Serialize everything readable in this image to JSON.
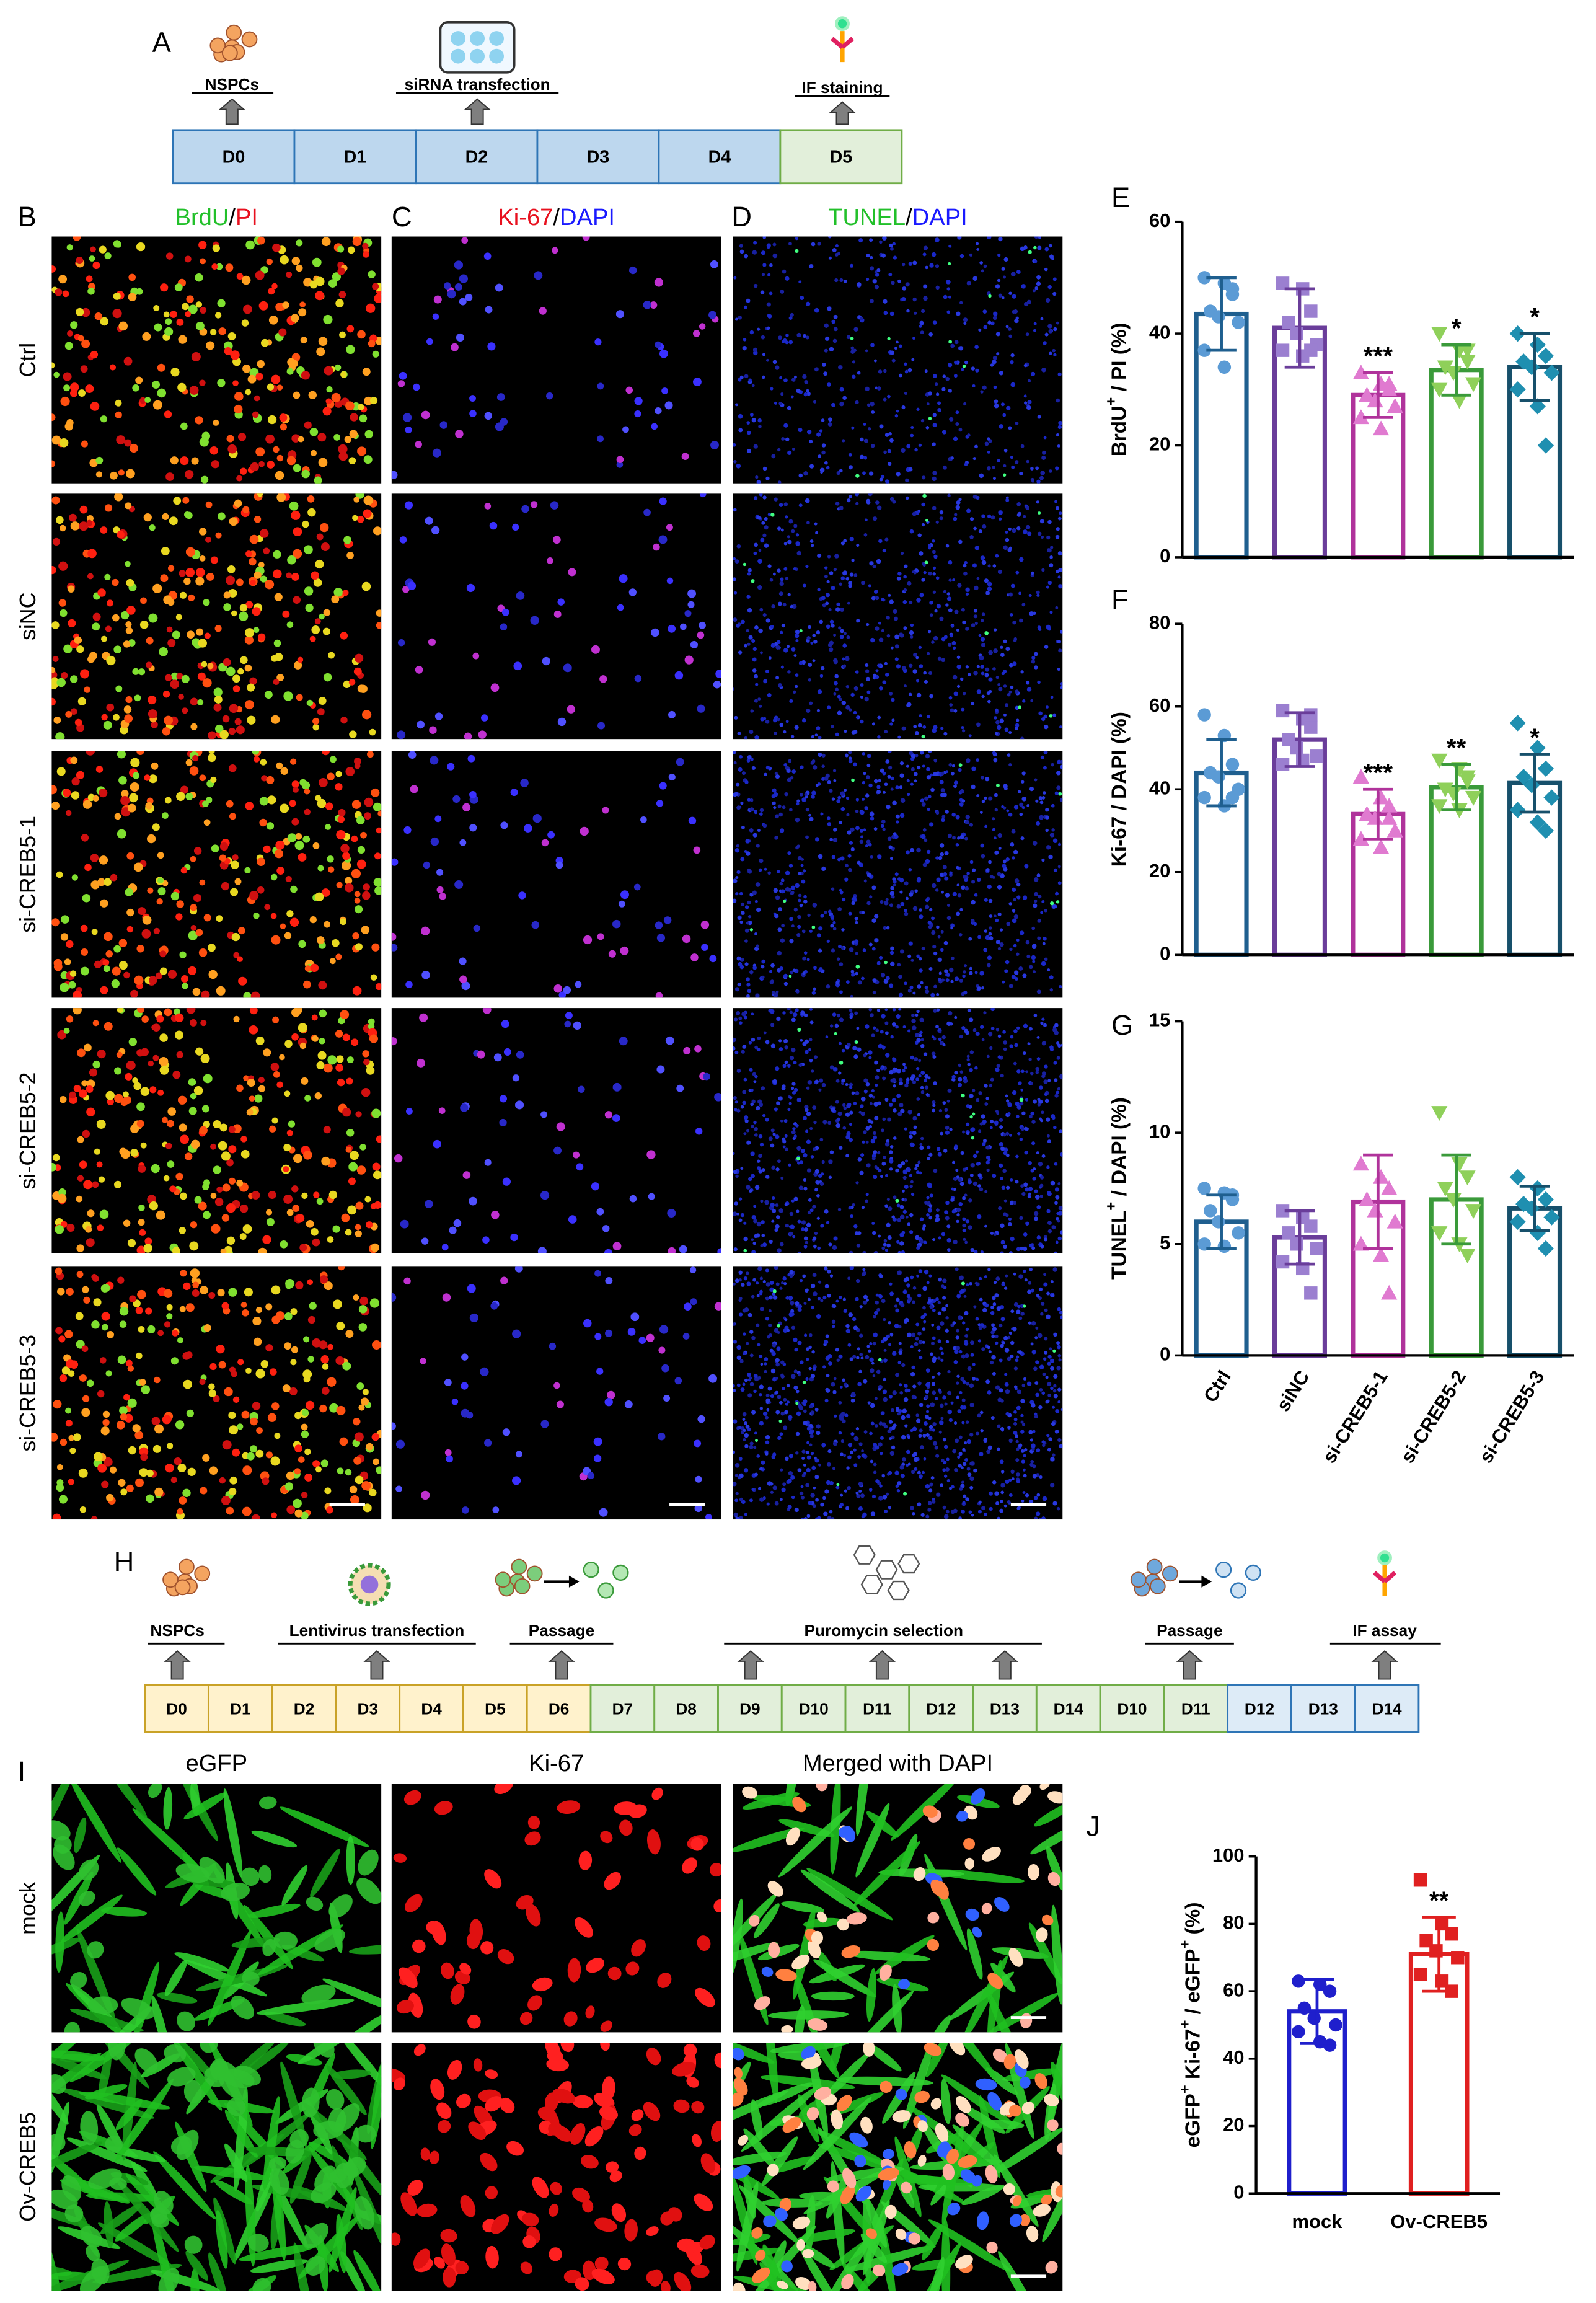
{
  "panel_letters": [
    "A",
    "B",
    "C",
    "D",
    "E",
    "F",
    "G",
    "H",
    "I",
    "J"
  ],
  "timeline_a": {
    "phases": [
      {
        "fill": "#bdd7ee",
        "stroke": "#2e75b6",
        "cells": [
          "D0",
          "D1",
          "D2",
          "D3",
          "D4"
        ]
      },
      {
        "fill": "#e2efda",
        "stroke": "#70ad47",
        "cells": [
          "D5"
        ]
      }
    ],
    "annotations": [
      "NSPCs",
      "siRNA transfection",
      "IF staining"
    ]
  },
  "image_grid_1": {
    "columns": [
      [
        {
          "text": "BrdU",
          "color": "#22c02a"
        },
        {
          "text": "/",
          "color": "#000000"
        },
        {
          "text": "PI",
          "color": "#e8101e"
        }
      ],
      [
        {
          "text": "Ki-67",
          "color": "#e8101e"
        },
        {
          "text": "/",
          "color": "#000000"
        },
        {
          "text": "DAPI",
          "color": "#1a1aff"
        }
      ],
      [
        {
          "text": "TUNEL",
          "color": "#22c02a"
        },
        {
          "text": "/",
          "color": "#000000"
        },
        {
          "text": "DAPI",
          "color": "#1a1aff"
        }
      ]
    ],
    "rows": [
      "Ctrl",
      "siNC",
      "si-CREB5-1",
      "si-CREB5-2",
      "si-CREB5-3"
    ]
  },
  "timeline_h": {
    "phases": [
      {
        "fill": "#fff2cc",
        "stroke": "#c9a227",
        "cells": [
          "D0",
          "D1",
          "D2",
          "D3",
          "D4",
          "D5",
          "D6"
        ]
      },
      {
        "fill": "#e2efda",
        "stroke": "#70ad47",
        "cells": [
          "D7",
          "D8",
          "D9",
          "D10",
          "D11",
          "D12",
          "D13",
          "D14",
          "D10",
          "D11"
        ]
      },
      {
        "fill": "#ddebf7",
        "stroke": "#2e75b6",
        "cells": [
          "D12",
          "D13",
          "D14"
        ]
      }
    ],
    "annotations": [
      "NSPCs",
      "Lentivirus transfection",
      "Passage",
      "Puromycin selection",
      "Passage",
      "IF assay"
    ]
  },
  "image_grid_2": {
    "columns": [
      "eGFP",
      "Ki-67",
      "Merged with DAPI"
    ],
    "rows": [
      "mock",
      "Ov-CREB5"
    ]
  },
  "chart_data": [
    {
      "type": "bar",
      "ylabel": [
        {
          "text": "BrdU"
        },
        {
          "text": "+",
          "sup": true
        },
        {
          "text": " / PI (%)"
        }
      ],
      "values": [
        43.5,
        41,
        29,
        33.5,
        34
      ],
      "errors": [
        6.5,
        7,
        4,
        4.5,
        6
      ],
      "points": [
        [
          50,
          49,
          47,
          44,
          43,
          42,
          37,
          34,
          48
        ],
        [
          49,
          48,
          44,
          42,
          40,
          38,
          37,
          36,
          37
        ],
        [
          33,
          31,
          30,
          29,
          28,
          27,
          25,
          23,
          31
        ],
        [
          40,
          37,
          35,
          34,
          33,
          31,
          30,
          28,
          37
        ],
        [
          40,
          38,
          36,
          35,
          34,
          33,
          30,
          27,
          20
        ]
      ],
      "annotations": [
        null,
        null,
        "***",
        "*",
        "*"
      ],
      "colors": [
        "#1f5f8f",
        "#6a3d9a",
        "#b0339b",
        "#3a9a3a",
        "#17506b"
      ],
      "point_colors": [
        "#5b9bd5",
        "#9b7fd0",
        "#e07ad0",
        "#8fd05a",
        "#1f8fb0"
      ],
      "markers": [
        "circle",
        "square",
        "triangle",
        "triangle-down",
        "diamond"
      ],
      "ylim": [
        0,
        60
      ],
      "yticks": [
        0,
        20,
        40,
        60
      ]
    },
    {
      "type": "bar",
      "ylabel": [
        {
          "text": "Ki-67 / DAPI (%)"
        }
      ],
      "values": [
        44,
        52,
        34,
        40.5,
        41.5
      ],
      "errors": [
        8,
        6.5,
        6,
        5.5,
        7
      ],
      "points": [
        [
          58,
          53,
          46,
          44,
          43,
          40,
          38,
          36,
          38
        ],
        [
          59,
          57,
          55,
          52,
          50,
          48,
          46,
          47,
          58
        ],
        [
          43,
          38,
          36,
          34,
          33,
          30,
          28,
          26,
          33
        ],
        [
          47,
          45,
          43,
          40,
          39,
          38,
          36,
          35,
          42
        ],
        [
          56,
          50,
          45,
          43,
          41,
          38,
          35,
          32,
          30
        ]
      ],
      "annotations": [
        null,
        null,
        "***",
        "**",
        "*"
      ],
      "colors": [
        "#1f5f8f",
        "#6a3d9a",
        "#b0339b",
        "#3a9a3a",
        "#17506b"
      ],
      "point_colors": [
        "#5b9bd5",
        "#9b7fd0",
        "#e07ad0",
        "#8fd05a",
        "#1f8fb0"
      ],
      "markers": [
        "circle",
        "square",
        "triangle",
        "triangle-down",
        "diamond"
      ],
      "ylim": [
        0,
        80
      ],
      "yticks": [
        0,
        20,
        40,
        60,
        80
      ]
    },
    {
      "type": "bar",
      "ylabel": [
        {
          "text": "TUNEL"
        },
        {
          "text": "+",
          "sup": true
        },
        {
          "text": " / DAPI (%)"
        }
      ],
      "categories": [
        "Ctrl",
        "siNC",
        "si-CREB5-1",
        "si-CREB5-2",
        "si-CREB5-3"
      ],
      "values": [
        6,
        5.3,
        6.9,
        7,
        6.6
      ],
      "errors": [
        1.2,
        1.2,
        2.1,
        2,
        1
      ],
      "points": [
        [
          7.5,
          7.3,
          7,
          6.5,
          6,
          5.5,
          5,
          4.9,
          7.2
        ],
        [
          6.5,
          6.2,
          5.8,
          5.5,
          5,
          4.8,
          4.2,
          3.9,
          2.8
        ],
        [
          8.6,
          8,
          7.5,
          7,
          6.5,
          6,
          5,
          4.5,
          2.8
        ],
        [
          10.9,
          8.6,
          8,
          7.5,
          7,
          6.5,
          5.5,
          5,
          4.5
        ],
        [
          8,
          7.5,
          7,
          6.8,
          6.6,
          6.2,
          6,
          5.5,
          4.8
        ]
      ],
      "colors": [
        "#1f5f8f",
        "#6a3d9a",
        "#b0339b",
        "#3a9a3a",
        "#17506b"
      ],
      "point_colors": [
        "#5b9bd5",
        "#9b7fd0",
        "#e07ad0",
        "#8fd05a",
        "#1f8fb0"
      ],
      "markers": [
        "circle",
        "square",
        "triangle",
        "triangle-down",
        "diamond"
      ],
      "ylim": [
        0,
        15
      ],
      "yticks": [
        0,
        5,
        10,
        15
      ]
    },
    {
      "type": "bar",
      "ylabel": [
        {
          "text": "eGFP"
        },
        {
          "text": "+",
          "sup": true
        },
        {
          "text": " Ki-67"
        },
        {
          "text": "+",
          "sup": true
        },
        {
          "text": " / eGFP"
        },
        {
          "text": "+",
          "sup": true
        },
        {
          "text": " (%)"
        }
      ],
      "categories": [
        "mock",
        "Ov-CREB5"
      ],
      "values": [
        54,
        71
      ],
      "errors": [
        9.5,
        11
      ],
      "points": [
        [
          63,
          62,
          60,
          55,
          52,
          50,
          48,
          45,
          44
        ],
        [
          93,
          80,
          77,
          75,
          72,
          70,
          65,
          63,
          60
        ]
      ],
      "annotations": [
        null,
        "**"
      ],
      "colors": [
        "#1f1fcc",
        "#e02020"
      ],
      "point_colors": [
        "#1f1fcc",
        "#e02020"
      ],
      "markers": [
        "circle",
        "square"
      ],
      "ylim": [
        0,
        100
      ],
      "yticks": [
        0,
        20,
        40,
        60,
        80,
        100
      ]
    }
  ]
}
